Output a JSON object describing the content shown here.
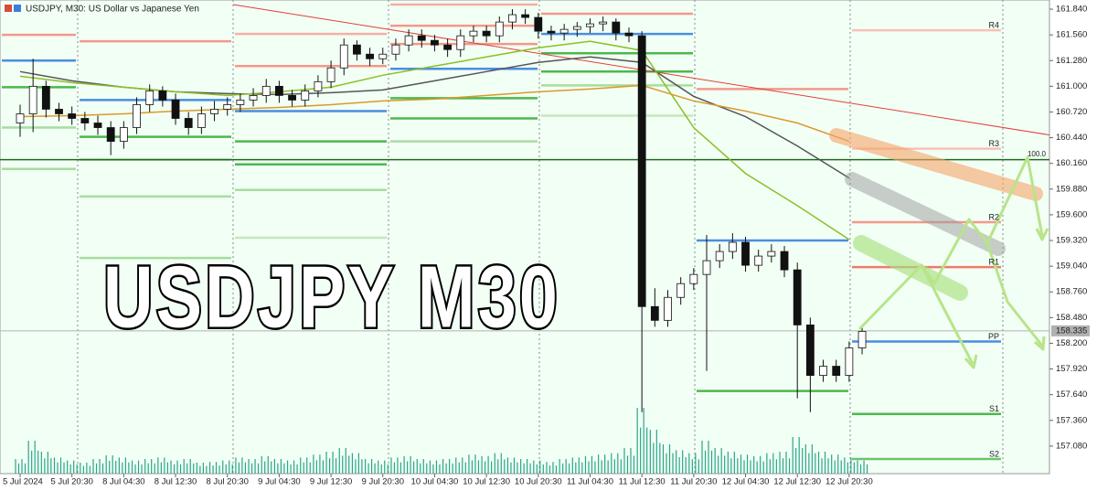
{
  "chart_data": {
    "type": "candlestick",
    "title": "USDJPY, M30:  US Dollar vs Japanese Yen",
    "overlay_text": "USDJPY M30",
    "categories": [
      "5 Jul 2024",
      "5 Jul 20:30",
      "8 Jul 04:30",
      "8 Jul 12:30",
      "8 Jul 20:30",
      "9 Jul 04:30",
      "9 Jul 12:30",
      "9 Jul 20:30",
      "10 Jul 04:30",
      "10 Jul 12:30",
      "10 Jul 20:30",
      "11 Jul 04:30",
      "11 Jul 12:30",
      "11 Jul 20:30",
      "12 Jul 04:30",
      "12 Jul 12:30",
      "12 Jul 20:30"
    ],
    "open": [
      160.6,
      160.7,
      161.0,
      160.75,
      160.7,
      160.65,
      160.6,
      160.55,
      160.4,
      160.55,
      160.8,
      160.95,
      160.85,
      160.65,
      160.55,
      160.7,
      160.75,
      160.8,
      160.85,
      160.9,
      161.0,
      160.9,
      160.85,
      160.95,
      161.05,
      161.2,
      161.45,
      161.35,
      161.3,
      161.35,
      161.45,
      161.55,
      161.5,
      161.45,
      161.4,
      161.55,
      161.6,
      161.55,
      161.7,
      161.78,
      161.75,
      161.6,
      161.58,
      161.62,
      161.65,
      161.68,
      161.7,
      161.58,
      161.55,
      158.6,
      158.45,
      158.7,
      158.85,
      158.95,
      159.1,
      159.2,
      159.3,
      159.05,
      159.15,
      159.2,
      159.0,
      158.4,
      157.85,
      157.95,
      157.85,
      158.15
    ],
    "high": [
      160.8,
      161.3,
      161.06,
      160.82,
      160.78,
      160.72,
      160.68,
      160.62,
      160.62,
      160.88,
      161.02,
      161.0,
      160.92,
      160.72,
      160.78,
      160.84,
      160.88,
      160.92,
      160.98,
      161.08,
      161.06,
      160.96,
      161.02,
      161.12,
      161.28,
      161.52,
      161.5,
      161.42,
      161.42,
      161.52,
      161.62,
      161.62,
      161.56,
      161.52,
      161.62,
      161.66,
      161.66,
      161.76,
      161.84,
      161.84,
      161.8,
      161.66,
      161.68,
      161.7,
      161.74,
      161.76,
      161.74,
      161.64,
      161.6,
      158.8,
      158.78,
      158.92,
      159.02,
      159.38,
      159.28,
      159.4,
      159.36,
      159.22,
      159.28,
      159.26,
      159.08,
      158.48,
      158.02,
      158.02,
      158.22,
      158.4
    ],
    "low": [
      160.45,
      160.5,
      160.66,
      160.62,
      160.58,
      160.52,
      160.47,
      160.25,
      160.32,
      160.48,
      160.72,
      160.78,
      160.58,
      160.47,
      160.48,
      160.62,
      160.68,
      160.72,
      160.78,
      160.82,
      160.82,
      160.78,
      160.78,
      160.88,
      160.98,
      161.12,
      161.28,
      161.22,
      161.24,
      161.28,
      161.38,
      161.42,
      161.38,
      161.32,
      161.32,
      161.48,
      161.48,
      161.48,
      161.62,
      161.68,
      161.52,
      161.5,
      161.5,
      161.54,
      161.58,
      161.6,
      161.5,
      161.48,
      157.45,
      158.38,
      158.38,
      158.62,
      158.78,
      157.9,
      159.02,
      159.12,
      158.98,
      158.98,
      159.08,
      158.92,
      157.6,
      157.45,
      157.78,
      157.78,
      157.78,
      158.08
    ],
    "close": [
      160.7,
      161.0,
      160.75,
      160.7,
      160.65,
      160.6,
      160.55,
      160.4,
      160.55,
      160.8,
      160.95,
      160.85,
      160.65,
      160.55,
      160.7,
      160.75,
      160.8,
      160.85,
      160.9,
      161.0,
      160.9,
      160.85,
      160.95,
      161.05,
      161.2,
      161.45,
      161.35,
      161.3,
      161.35,
      161.45,
      161.55,
      161.5,
      161.45,
      161.4,
      161.55,
      161.6,
      161.55,
      161.7,
      161.78,
      161.75,
      161.6,
      161.58,
      161.62,
      161.65,
      161.68,
      161.7,
      161.58,
      161.55,
      158.6,
      158.45,
      158.7,
      158.85,
      158.95,
      159.1,
      159.2,
      159.3,
      159.05,
      159.15,
      159.2,
      159.0,
      158.4,
      157.85,
      157.95,
      157.85,
      158.15,
      158.33
    ],
    "volumes": [
      20,
      45,
      30,
      22,
      18,
      15,
      20,
      25,
      22,
      18,
      20,
      22,
      18,
      20,
      15,
      16,
      18,
      22,
      20,
      24,
      20,
      18,
      22,
      26,
      30,
      35,
      28,
      20,
      18,
      22,
      24,
      20,
      18,
      20,
      22,
      26,
      24,
      28,
      22,
      20,
      18,
      16,
      20,
      22,
      24,
      26,
      28,
      35,
      90,
      60,
      40,
      32,
      28,
      45,
      35,
      30,
      26,
      24,
      28,
      30,
      50,
      40,
      30,
      26,
      22,
      18
    ],
    "volume_lim": [
      0,
      100
    ],
    "volume_color": "#2aa58a",
    "up_color": "#ffffff",
    "down_color": "#111111",
    "ylim": [
      156.78,
      161.94
    ],
    "yticks": [
      {
        "value": 161.84,
        "label": "161.840"
      },
      {
        "value": 161.56,
        "label": "161.560"
      },
      {
        "value": 161.28,
        "label": "161.280"
      },
      {
        "value": 161.0,
        "label": "161.000"
      },
      {
        "value": 160.72,
        "label": "160.720"
      },
      {
        "value": 160.44,
        "label": "160.440"
      },
      {
        "value": 160.16,
        "label": "160.160"
      },
      {
        "value": 159.88,
        "label": "159.880"
      },
      {
        "value": 159.6,
        "label": "159.600"
      },
      {
        "value": 159.32,
        "label": "159.320"
      },
      {
        "value": 159.04,
        "label": "159.040"
      },
      {
        "value": 158.76,
        "label": "158.760"
      },
      {
        "value": 158.48,
        "label": "158.480"
      },
      {
        "value": 158.2,
        "label": "158.200"
      },
      {
        "value": 157.92,
        "label": "157.920"
      },
      {
        "value": 157.64,
        "label": "157.640"
      },
      {
        "value": 157.36,
        "label": "157.360"
      },
      {
        "value": 157.08,
        "label": "157.080"
      }
    ],
    "current_price": {
      "value": 158.335,
      "label": "158.335"
    },
    "ma": [
      {
        "color": "#555555",
        "values": [
          161.16,
          161.06,
          160.99,
          160.94,
          160.92,
          160.91,
          160.93,
          160.96,
          161.06,
          161.16,
          161.26,
          161.32,
          161.26,
          160.89,
          160.67,
          160.35,
          160.0
        ]
      },
      {
        "color": "#8cbf26",
        "values": [
          161.11,
          161.04,
          160.99,
          160.94,
          160.9,
          160.94,
          160.99,
          161.12,
          161.22,
          161.32,
          161.42,
          161.49,
          161.39,
          160.55,
          160.05,
          159.7,
          159.33
        ]
      },
      {
        "color": "#d99a2b",
        "values": [
          160.67,
          160.68,
          160.7,
          160.73,
          160.75,
          160.77,
          160.8,
          160.84,
          160.86,
          160.9,
          160.94,
          160.97,
          161.01,
          160.84,
          160.73,
          160.6,
          160.4
        ]
      }
    ],
    "trendline": {
      "color": "#e0403a",
      "values": [
        161.89,
        160.47
      ]
    },
    "fib": {
      "label": "100.0",
      "value": 160.2,
      "color": "#1e6b1e"
    },
    "pivot_days": [
      {
        "levels": [
          {
            "value": 161.56,
            "color": "#f4988a"
          },
          {
            "value": 161.28,
            "color": "#4a8ee0"
          },
          {
            "value": 160.99,
            "color": "#4cb84c"
          },
          {
            "value": 160.55,
            "color": "#a8dca0"
          },
          {
            "value": 160.1,
            "color": "#a8dca0"
          }
        ]
      },
      {
        "levels": [
          {
            "value": 161.49,
            "color": "#f4988a"
          },
          {
            "value": 160.85,
            "color": "#4a8ee0"
          },
          {
            "value": 160.45,
            "color": "#4cb84c"
          },
          {
            "value": 160.2,
            "color": "#a8dca0"
          },
          {
            "value": 159.8,
            "color": "#a8dca0"
          },
          {
            "value": 159.13,
            "color": "#a8dca0"
          }
        ]
      },
      {
        "levels": [
          {
            "value": 161.57,
            "color": "#f4b0a4"
          },
          {
            "value": 161.22,
            "color": "#f4988a"
          },
          {
            "value": 160.73,
            "color": "#4a8ee0"
          },
          {
            "value": 160.4,
            "color": "#4cb84c"
          },
          {
            "value": 160.15,
            "color": "#4cb84c"
          },
          {
            "value": 159.87,
            "color": "#a8dca0"
          },
          {
            "value": 159.35,
            "color": "#c4e8bc"
          }
        ]
      },
      {
        "levels": [
          {
            "value": 161.89,
            "color": "#f4b0a4"
          },
          {
            "value": 161.66,
            "color": "#f4988a"
          },
          {
            "value": 161.46,
            "color": "#f4988a"
          },
          {
            "value": 161.19,
            "color": "#4a8ee0"
          },
          {
            "value": 160.87,
            "color": "#4cb84c"
          },
          {
            "value": 160.65,
            "color": "#4cb84c"
          },
          {
            "value": 160.4,
            "color": "#a8dca0"
          }
        ]
      },
      {
        "levels": [
          {
            "value": 161.79,
            "color": "#f4988a"
          },
          {
            "value": 161.57,
            "color": "#4a8ee0"
          },
          {
            "value": 161.36,
            "color": "#4cb84c"
          },
          {
            "value": 161.16,
            "color": "#4cb84c"
          },
          {
            "value": 161.01,
            "color": "#a8dca0"
          },
          {
            "value": 160.68,
            "color": "#c4e8bc"
          }
        ]
      },
      {
        "levels": [
          {
            "value": 160.97,
            "color": "#f4988a"
          },
          {
            "value": 159.32,
            "color": "#4a8ee0"
          },
          {
            "value": 157.68,
            "color": "#4cb84c"
          }
        ]
      },
      {
        "levels": [
          {
            "name": "R4",
            "value": 161.61,
            "color": "#f8c0b6"
          },
          {
            "name": "R3",
            "value": 160.32,
            "color": "#f8c0b6"
          },
          {
            "name": "R2",
            "value": 159.52,
            "color": "#f4988a"
          },
          {
            "name": "R1",
            "value": 159.03,
            "color": "#f07a6a"
          },
          {
            "name": "PP",
            "value": 158.22,
            "color": "#4a8ee0"
          },
          {
            "name": "S1",
            "value": 157.43,
            "color": "#4cb84c"
          },
          {
            "name": "S2",
            "value": 156.94,
            "color": "#6cc46c"
          }
        ]
      }
    ]
  }
}
